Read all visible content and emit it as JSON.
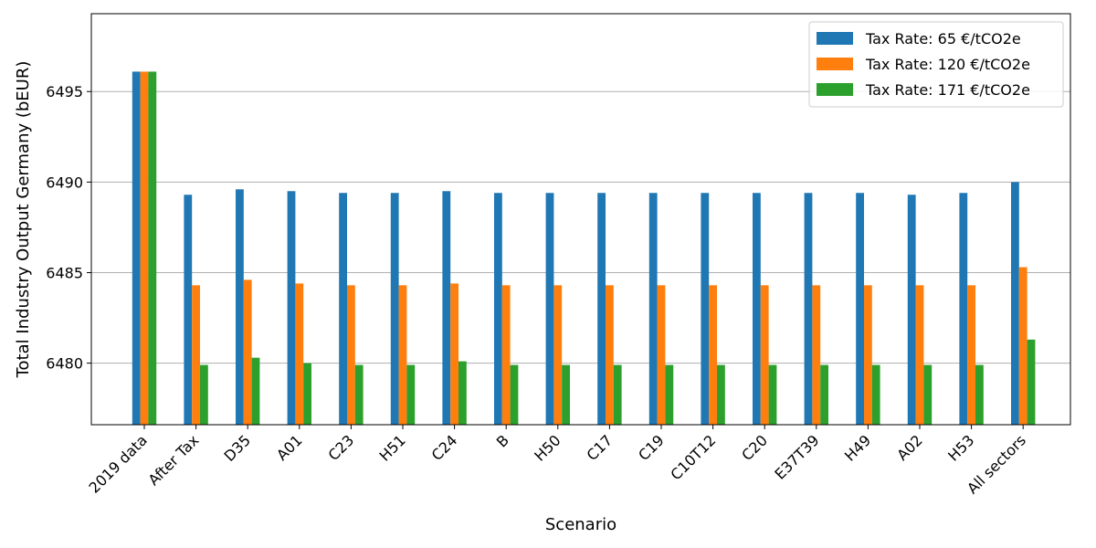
{
  "chart_data": {
    "type": "bar",
    "xlabel": "Scenario",
    "ylabel": "Total Industry Output Germany (bEUR)",
    "ylim": [
      6476.6,
      6499.3
    ],
    "yticks": [
      "6480",
      "6485",
      "6490",
      "6495"
    ],
    "ytick_values": [
      6480,
      6485,
      6490,
      6495
    ],
    "grid": "horizontal",
    "legend_position": "top-right",
    "categories": [
      "2019 data",
      "After Tax",
      "D35",
      "A01",
      "C23",
      "H51",
      "C24",
      "B",
      "H50",
      "C17",
      "C19",
      "C10T12",
      "C20",
      "E37T39",
      "H49",
      "A02",
      "H53",
      "All sectors"
    ],
    "series": [
      {
        "name": "Tax Rate: 65 €/tCO2e",
        "color": "#1f77b4",
        "values": [
          6496.1,
          6489.3,
          6489.6,
          6489.5,
          6489.4,
          6489.4,
          6489.5,
          6489.4,
          6489.4,
          6489.4,
          6489.4,
          6489.4,
          6489.4,
          6489.4,
          6489.4,
          6489.3,
          6489.4,
          6490.0
        ]
      },
      {
        "name": "Tax Rate: 120 €/tCO2e",
        "color": "#ff7f0e",
        "values": [
          6496.1,
          6484.3,
          6484.6,
          6484.4,
          6484.3,
          6484.3,
          6484.4,
          6484.3,
          6484.3,
          6484.3,
          6484.3,
          6484.3,
          6484.3,
          6484.3,
          6484.3,
          6484.3,
          6484.3,
          6485.3
        ]
      },
      {
        "name": "Tax Rate: 171 €/tCO2e",
        "color": "#2ca02c",
        "values": [
          6496.1,
          6479.9,
          6480.3,
          6480.0,
          6479.9,
          6479.9,
          6480.1,
          6479.9,
          6479.9,
          6479.9,
          6479.9,
          6479.9,
          6479.9,
          6479.9,
          6479.9,
          6479.9,
          6479.9,
          6481.3
        ]
      }
    ]
  }
}
